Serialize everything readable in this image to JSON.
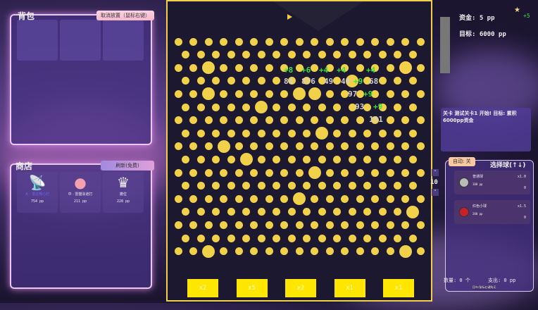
{
  "backpack": {
    "title": "背包",
    "cancel_button": "取消放置（鼠标右键）"
  },
  "shop": {
    "title": "商店",
    "refresh_button": "刷新(免费)",
    "items": [
      {
        "name": "大 · 雷达核心打",
        "price": "754 pp",
        "icon": "radar-icon",
        "name_color": "#5a5aff"
      },
      {
        "name": "中 · 雷猫泳道打",
        "price": "211 pp",
        "icon": "slime-icon",
        "name_color": "#ffffff"
      },
      {
        "name": "撤位",
        "price": "228 pp",
        "icon": "crown-icon",
        "name_color": "#ffffff"
      }
    ]
  },
  "board": {
    "multipliers": [
      "x2",
      "x5",
      "x2",
      "x1",
      "x1"
    ],
    "peg_color": "#f2d14a",
    "floating_texts": [
      {
        "text": "+8",
        "type": "gain"
      },
      {
        "text": "+6",
        "type": "gain"
      },
      {
        "text": "+4",
        "type": "gain"
      },
      {
        "text": "+4",
        "type": "gain"
      },
      {
        "text": "+4",
        "type": "gain"
      },
      {
        "text": "+9",
        "type": "gain"
      },
      {
        "text": "+9",
        "type": "gain"
      },
      {
        "text": "+9",
        "type": "gain"
      },
      {
        "text": "84",
        "type": "count"
      },
      {
        "text": "876",
        "type": "count"
      },
      {
        "text": "49",
        "type": "count"
      },
      {
        "text": "49",
        "type": "count"
      },
      {
        "text": "68",
        "type": "count"
      },
      {
        "text": "97",
        "type": "count"
      },
      {
        "text": "93",
        "type": "count"
      },
      {
        "text": "101",
        "type": "count"
      }
    ]
  },
  "stats": {
    "funds": "资金: 5 pp",
    "funds_gain": "+5",
    "target": "目标: 6000 pp"
  },
  "message": {
    "text": "关卡 测试关卡1 开始! 目标: 累积6000pp资金"
  },
  "stepper": {
    "value": "10"
  },
  "ball_select": {
    "auto_button": "自动: 关",
    "title": "选择球(↑↓)",
    "balls": [
      {
        "name": "普通球",
        "price": "100 pp",
        "mult": "x1.0",
        "count": "0",
        "color": "#b8bcb8"
      },
      {
        "name": "红色小球",
        "price": "200 pp",
        "mult": "x1.5",
        "count": "0",
        "color": "#c8202a"
      }
    ],
    "quantity": "数量: 0 个",
    "cost": "支出: 0 pp",
    "hint": "回车/鼠标右键购买"
  }
}
